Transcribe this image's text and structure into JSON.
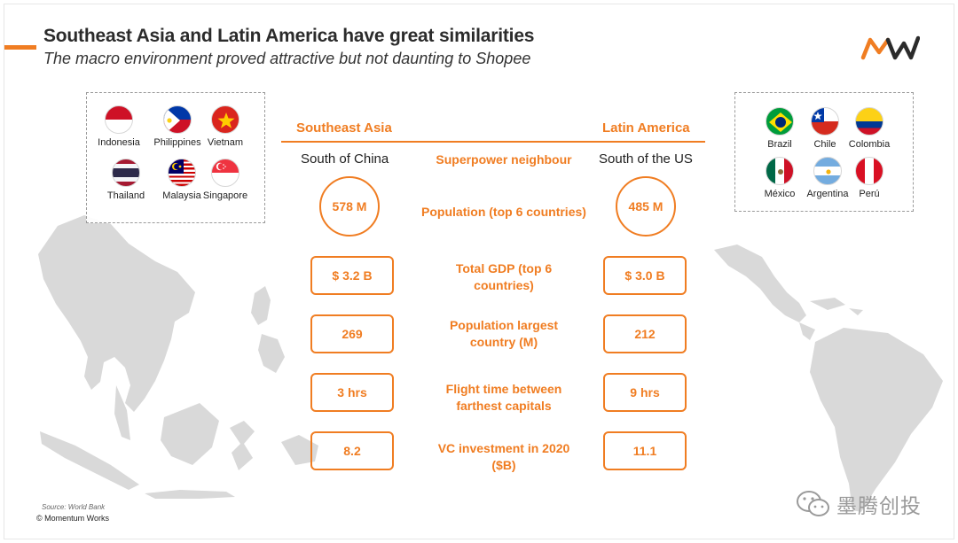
{
  "header": {
    "title": "Southeast Asia and Latin America have great similarities",
    "subtitle": "The macro environment proved attractive but not daunting to Shopee"
  },
  "colors": {
    "accent": "#f07d22",
    "map": "#d9d9d9"
  },
  "sea_flags": [
    {
      "label": "Indonesia",
      "icon": "indonesia-flag-icon"
    },
    {
      "label": "Philippines",
      "icon": "philippines-flag-icon"
    },
    {
      "label": "Vietnam",
      "icon": "vietnam-flag-icon"
    },
    {
      "label": "Thailand",
      "icon": "thailand-flag-icon"
    },
    {
      "label": "Malaysia",
      "icon": "malaysia-flag-icon"
    },
    {
      "label": "Singapore",
      "icon": "singapore-flag-icon"
    }
  ],
  "latam_flags": [
    {
      "label": "Brazil",
      "icon": "brazil-flag-icon"
    },
    {
      "label": "Chile",
      "icon": "chile-flag-icon"
    },
    {
      "label": "Colombia",
      "icon": "colombia-flag-icon"
    },
    {
      "label": "México",
      "icon": "mexico-flag-icon"
    },
    {
      "label": "Argentina",
      "icon": "argentina-flag-icon"
    },
    {
      "label": "Perú",
      "icon": "peru-flag-icon"
    }
  ],
  "columns": {
    "left": "Southeast Asia",
    "right": "Latin America"
  },
  "neighbour": {
    "left": "South of China",
    "label": "Superpower neighbour",
    "right": "South of the US"
  },
  "metrics": [
    {
      "label": "Population (top 6 countries)",
      "left": "578 M",
      "right": "485 M"
    },
    {
      "label": "Total GDP (top 6 countries)",
      "left": "$ 3.2 B",
      "right": "$ 3.0 B"
    },
    {
      "label": "Population largest country (M)",
      "left": "269",
      "right": "212"
    },
    {
      "label": "Flight time between farthest capitals",
      "left": "3 hrs",
      "right": "9 hrs"
    },
    {
      "label": "VC investment in 2020 ($B)",
      "left": "8.2",
      "right": "11.1"
    }
  ],
  "footer": {
    "source": "Source: World Bank",
    "copyright": "© Momentum Works",
    "watermark": "墨腾创投"
  }
}
